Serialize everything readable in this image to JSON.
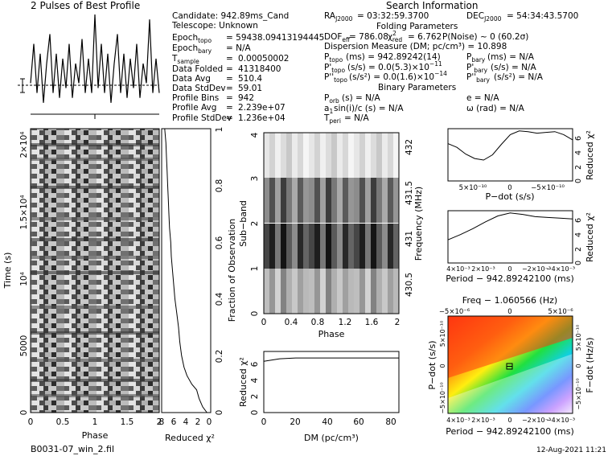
{
  "header": {
    "profile_title": "2 Pulses of Best Profile",
    "search_title": "Search Information",
    "folding_title": "Folding Parameters",
    "binary_title": "Binary Parameters"
  },
  "info": {
    "candidate": "Candidate:  942.89ms_Cand",
    "telescope": "Telescope:   Unknown",
    "epoch_topo": "= 59438.09413194445",
    "epoch_bary": "= N/A",
    "t_sample": "0.00050002",
    "data_folded": "41318400",
    "data_avg": "510.4",
    "data_stddev": "59.01",
    "profile_bins": "942",
    "profile_avg": "2.239e+07",
    "profile_stddev": "1.236e+04",
    "ra": "= 03:32:59.3700",
    "dec": "= 54:34:43.5700",
    "dof_line": "= 786.08",
    "chi_red": "= 6.762",
    "p_noise": "P(Noise) ~ 0    (60.2σ)",
    "dm_line": "Dispersion Measure (DM; pc/cm³) = 10.898",
    "p_topo": "(ms)  =  942.89242(14)",
    "pdot_topo": "(s/s)  = 0.0(5.3)×10",
    "pdot_topo_exp": "−11",
    "pddot_topo": "(s/s²) = 0.0(1.6)×10",
    "pddot_topo_exp": "−14",
    "p_bary": "(ms) = N/A",
    "pdot_bary": "(s/s) = N/A",
    "pddot_bary": "(s/s²) = N/A",
    "p_orb": "(s) = N/A",
    "a1": "sin(i)/c (s) = N/A",
    "t_peri": "= N/A",
    "ecc": "e = N/A",
    "omega": "ω (rad) = N/A"
  },
  "footer": {
    "filename": "B0031-07_win_2.fil",
    "date": "12-Aug-2021 11:21"
  },
  "chart_data": [
    {
      "type": "line",
      "name": "profile",
      "title": "2 Pulses of Best Profile",
      "x": [
        0,
        0.05,
        0.1,
        0.15,
        0.2,
        0.25,
        0.3,
        0.35,
        0.4,
        0.45,
        0.5,
        0.55,
        0.6,
        0.65,
        0.7,
        0.75,
        0.8,
        0.85,
        0.9,
        0.95,
        1.0,
        1.05,
        1.1,
        1.15,
        1.2,
        1.25,
        1.3,
        1.35,
        1.4,
        1.45,
        1.5,
        1.55,
        1.6,
        1.65,
        1.7,
        1.75,
        1.8,
        1.85,
        1.9,
        1.95,
        2.0
      ],
      "values": [
        0.3,
        0.7,
        0.2,
        0.6,
        0.1,
        0.5,
        0.8,
        0.2,
        0.6,
        0.15,
        0.55,
        0.25,
        0.7,
        0.15,
        0.5,
        0.3,
        0.75,
        0.2,
        0.55,
        0.2,
        1.0,
        0.25,
        0.7,
        0.2,
        0.6,
        0.1,
        0.5,
        0.8,
        0.2,
        0.6,
        0.15,
        0.55,
        0.25,
        0.7,
        0.15,
        0.5,
        0.3,
        0.95,
        0.2,
        0.55,
        0.2
      ]
    },
    {
      "type": "heatmap",
      "name": "time-phase",
      "xlabel": "Phase",
      "ylabel": "Time (s)",
      "xlim": [
        0,
        2
      ],
      "ylim": [
        0,
        21000
      ],
      "xticks": [
        "0",
        "0.5",
        "1",
        "1.5",
        "2"
      ],
      "yticks": [
        "0",
        "5000",
        "10⁴",
        "1.5×10⁴",
        "2×10⁴"
      ]
    },
    {
      "type": "line",
      "name": "reduced-chi2-vs-time",
      "xlabel": "Reduced χ²",
      "ylabel": "Fraction of Observation",
      "xticks": [
        "8",
        "6",
        "4",
        "2",
        "0"
      ],
      "yticks": [
        "0",
        "0.2",
        "0.4",
        "0.6",
        "0.8",
        "1"
      ],
      "fraction": [
        0,
        0.02,
        0.05,
        0.08,
        0.1,
        0.13,
        0.16,
        0.2,
        0.25,
        0.3,
        0.35,
        0.4,
        0.45,
        0.5,
        0.55,
        0.6,
        0.65,
        0.7,
        0.75,
        0.8,
        0.85,
        0.9,
        0.95,
        1.0
      ],
      "chi2": [
        0.5,
        1.2,
        1.8,
        2.2,
        3.0,
        3.8,
        4.3,
        4.7,
        5.0,
        5.2,
        5.5,
        5.8,
        6.0,
        6.2,
        6.4,
        6.5,
        6.7,
        6.8,
        6.9,
        7.0,
        7.1,
        7.2,
        7.3,
        7.5
      ]
    },
    {
      "type": "heatmap",
      "name": "subband-phase",
      "xlabel": "Phase",
      "ylabel": "Sub−band",
      "y2label": "Frequency (MHz)",
      "xticks": [
        "0",
        "0.4",
        "0.8",
        "1.2",
        "1.6",
        "2"
      ],
      "yticks": [
        "0",
        "1",
        "2",
        "3",
        "4"
      ],
      "y2ticks": [
        "430.5",
        "431",
        "431.5",
        "432"
      ]
    },
    {
      "type": "line",
      "name": "dm-curve",
      "xlabel": "DM (pc/cm³)",
      "ylabel": "Reduced χ²",
      "xlim": [
        0,
        85
      ],
      "ylim": [
        0,
        7.5
      ],
      "xticks": [
        "0",
        "20",
        "40",
        "60",
        "80"
      ],
      "yticks": [
        "0",
        "2",
        "4",
        "6"
      ],
      "x": [
        0,
        10,
        20,
        30,
        40,
        50,
        60,
        70,
        80,
        85
      ],
      "values": [
        6.3,
        6.6,
        6.7,
        6.7,
        6.7,
        6.7,
        6.7,
        6.7,
        6.7,
        6.7
      ]
    },
    {
      "type": "line",
      "name": "pdot-curve",
      "xlabel": "P−dot (s/s)",
      "ylabel": "Reduced χ²",
      "ylim": [
        0,
        7
      ],
      "xticks": [
        "5×10⁻¹⁰",
        "0",
        "−5×10⁻¹⁰"
      ],
      "yticks": [
        "0",
        "2",
        "4",
        "6"
      ],
      "x": [
        7,
        6,
        5,
        4,
        3,
        2,
        1,
        0,
        -1,
        -2,
        -3,
        -4,
        -5,
        -6,
        -7
      ],
      "values": [
        5.0,
        4.5,
        3.6,
        3.0,
        2.8,
        3.5,
        4.9,
        6.2,
        6.7,
        6.6,
        6.4,
        6.5,
        6.6,
        6.2,
        5.5
      ]
    },
    {
      "type": "line",
      "name": "period-curve",
      "xlabel": "Period − 942.89242100 (ms)",
      "ylabel": "Reduced χ²",
      "ylim": [
        0,
        7
      ],
      "xticks": [
        "4×10⁻³",
        "2×10⁻³",
        "0",
        "−2×10⁻³",
        "−4×10⁻³"
      ],
      "yticks": [
        "0",
        "2",
        "4",
        "6"
      ],
      "x": [
        5,
        4,
        3,
        2,
        1,
        0,
        -1,
        -2,
        -3,
        -4,
        -5
      ],
      "values": [
        3.1,
        3.8,
        4.6,
        5.5,
        6.3,
        6.7,
        6.5,
        6.2,
        6.1,
        6.0,
        5.9
      ]
    },
    {
      "type": "heatmap",
      "name": "p-pdot-plane",
      "title": "Freq − 1.060566 (Hz)",
      "xlabel": "Period − 942.89242100 (ms)",
      "ylabel": "P−dot (s/s)",
      "y2label": "F−dot (Hz/s)",
      "xticks": [
        "4×10⁻³",
        "2×10⁻³",
        "0",
        "−2×10⁻³",
        "−4×10⁻³"
      ],
      "x2ticks": [
        "−5×10⁻⁶",
        "0",
        "5×10⁻⁶"
      ],
      "yticks": [
        "−5×10⁻¹⁰",
        "0",
        "5×10⁻¹⁰"
      ],
      "y2ticks": [
        "5×10⁻¹⁰",
        "0",
        "−5×10⁻¹⁰"
      ]
    }
  ]
}
